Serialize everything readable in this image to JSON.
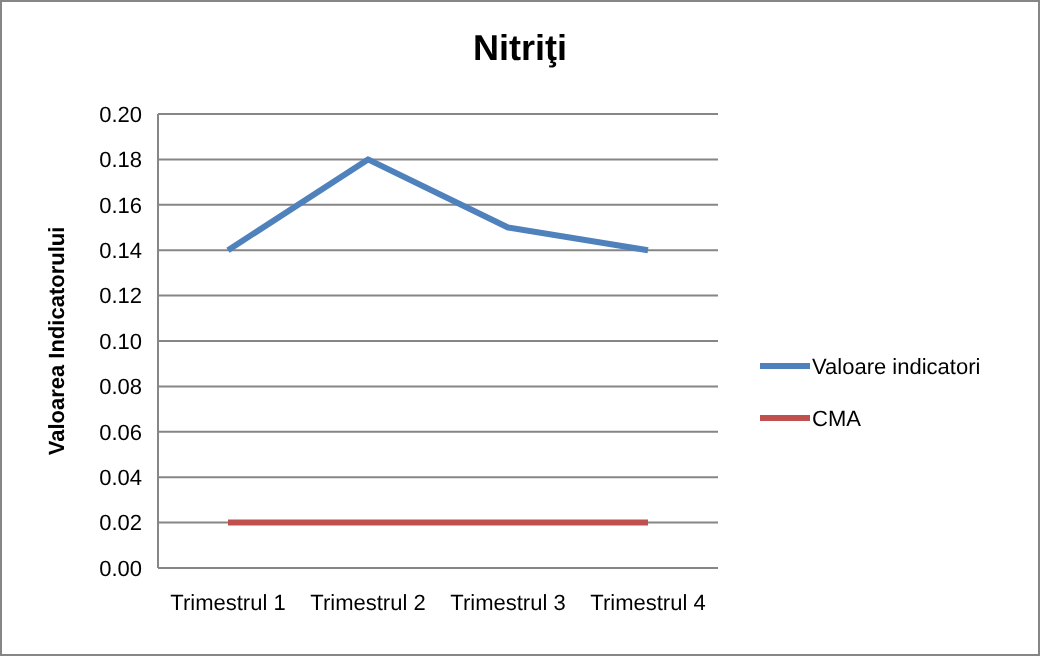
{
  "chart_data": {
    "type": "line",
    "title": "Nitriţi",
    "ylabel": "Valoarea Indicatorului",
    "categories": [
      "Trimestrul 1",
      "Trimestrul 2",
      "Trimestrul 3",
      "Trimestrul 4"
    ],
    "series": [
      {
        "name": "Valoare indicatori",
        "color": "#4f81bd",
        "values": [
          0.14,
          0.18,
          0.15,
          0.14
        ]
      },
      {
        "name": "CMA",
        "color": "#c0504d",
        "values": [
          0.02,
          0.02,
          0.02,
          0.02
        ]
      }
    ],
    "ylim": [
      0,
      0.2
    ],
    "yticks": [
      {
        "value": 0,
        "label": "0.00"
      },
      {
        "value": 0.02,
        "label": "0.02"
      },
      {
        "value": 0.04,
        "label": "0.04"
      },
      {
        "value": 0.06,
        "label": "0.06"
      },
      {
        "value": 0.08,
        "label": "0.08"
      },
      {
        "value": 0.1,
        "label": "0.10"
      },
      {
        "value": 0.12,
        "label": "0.12"
      },
      {
        "value": 0.14,
        "label": "0.14"
      },
      {
        "value": 0.16,
        "label": "0.16"
      },
      {
        "value": 0.18,
        "label": "0.18"
      },
      {
        "value": 0.2,
        "label": "0.20"
      }
    ],
    "grid": "y",
    "legend": "right",
    "marker": "none",
    "line_style": "solid"
  }
}
